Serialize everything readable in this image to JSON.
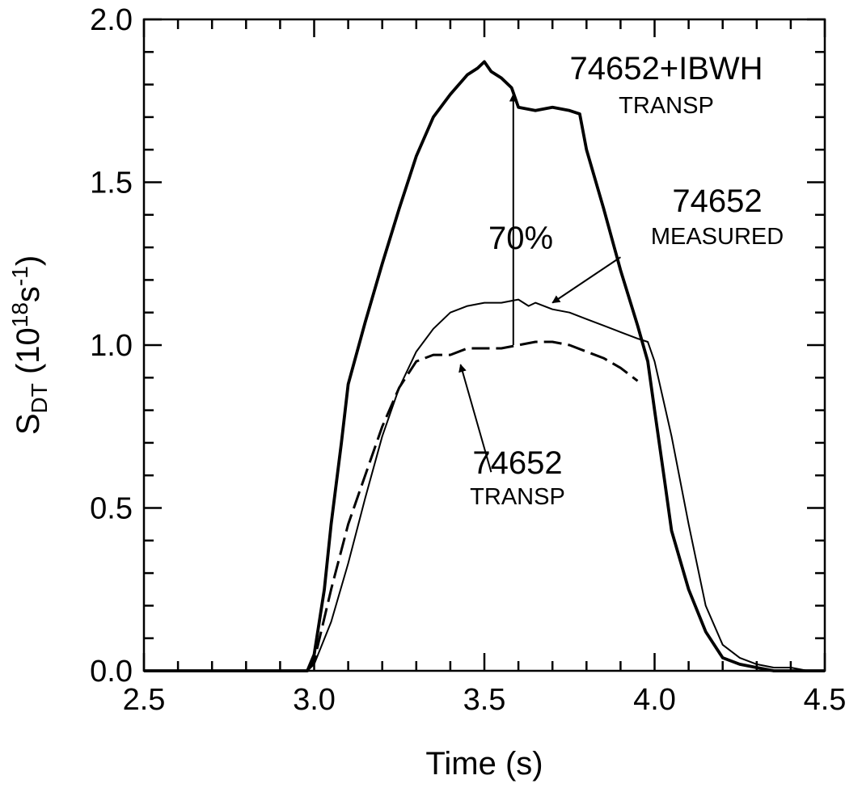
{
  "chart_data": {
    "type": "line",
    "title": "",
    "xlabel": "Time (s)",
    "ylabel": {
      "base": "S",
      "sub": "DT",
      "unit_open": " (10",
      "unit_sup1": "18",
      "unit_s": "s",
      "unit_sup2": "-1",
      "unit_close": ")"
    },
    "xlim": [
      2.5,
      4.5
    ],
    "ylim": [
      0.0,
      2.0
    ],
    "xticks": [
      {
        "value": 2.5,
        "label": "2.5"
      },
      {
        "value": 3.0,
        "label": "3.0"
      },
      {
        "value": 3.5,
        "label": "3.5"
      },
      {
        "value": 4.0,
        "label": "4.0"
      },
      {
        "value": 4.5,
        "label": "4.5"
      }
    ],
    "yticks": [
      {
        "value": 0.0,
        "label": "0.0"
      },
      {
        "value": 0.5,
        "label": "0.5"
      },
      {
        "value": 1.0,
        "label": "1.0"
      },
      {
        "value": 1.5,
        "label": "1.5"
      },
      {
        "value": 2.0,
        "label": "2.0"
      }
    ],
    "minor_tick_step_x": 0.1,
    "minor_tick_step_y": 0.1,
    "grid": false,
    "series": [
      {
        "style": "thick-solid",
        "x": [
          2.5,
          2.98,
          3.0,
          3.03,
          3.05,
          3.08,
          3.1,
          3.15,
          3.2,
          3.25,
          3.3,
          3.35,
          3.4,
          3.45,
          3.48,
          3.5,
          3.52,
          3.55,
          3.58,
          3.6,
          3.65,
          3.7,
          3.75,
          3.78,
          3.8,
          3.85,
          3.9,
          3.95,
          3.98,
          4.0,
          4.03,
          4.05,
          4.1,
          4.15,
          4.2,
          4.25,
          4.3,
          4.35,
          4.4,
          4.5
        ],
        "y": [
          0.0,
          0.0,
          0.05,
          0.25,
          0.45,
          0.7,
          0.88,
          1.07,
          1.25,
          1.42,
          1.58,
          1.7,
          1.77,
          1.83,
          1.85,
          1.87,
          1.84,
          1.82,
          1.79,
          1.73,
          1.72,
          1.73,
          1.72,
          1.71,
          1.6,
          1.42,
          1.23,
          1.06,
          0.95,
          0.8,
          0.58,
          0.43,
          0.25,
          0.12,
          0.04,
          0.02,
          0.01,
          0.0,
          0.0,
          0.0
        ]
      },
      {
        "style": "thin-solid",
        "x": [
          2.98,
          3.0,
          3.05,
          3.1,
          3.15,
          3.2,
          3.25,
          3.3,
          3.35,
          3.4,
          3.45,
          3.5,
          3.55,
          3.6,
          3.63,
          3.65,
          3.7,
          3.75,
          3.8,
          3.85,
          3.9,
          3.95,
          3.98,
          4.0,
          4.05,
          4.1,
          4.15,
          4.2,
          4.25,
          4.3,
          4.35,
          4.4,
          4.45,
          4.5
        ],
        "y": [
          0.0,
          0.02,
          0.15,
          0.33,
          0.53,
          0.72,
          0.87,
          0.98,
          1.05,
          1.1,
          1.12,
          1.13,
          1.13,
          1.14,
          1.12,
          1.13,
          1.11,
          1.1,
          1.08,
          1.06,
          1.04,
          1.02,
          1.01,
          0.95,
          0.72,
          0.45,
          0.2,
          0.08,
          0.04,
          0.02,
          0.01,
          0.01,
          0.0,
          0.0
        ]
      },
      {
        "style": "dashed",
        "x": [
          2.98,
          3.0,
          3.05,
          3.1,
          3.15,
          3.2,
          3.25,
          3.3,
          3.35,
          3.4,
          3.45,
          3.5,
          3.55,
          3.6,
          3.65,
          3.7,
          3.75,
          3.8,
          3.85,
          3.9,
          3.95
        ],
        "y": [
          0.0,
          0.03,
          0.25,
          0.45,
          0.6,
          0.75,
          0.87,
          0.95,
          0.97,
          0.97,
          0.99,
          0.99,
          0.99,
          1.0,
          1.01,
          1.01,
          1.0,
          0.98,
          0.96,
          0.93,
          0.89
        ]
      }
    ],
    "annotations": [
      {
        "id": "ibwh",
        "lines": [
          "74652+IBWH",
          "TRANSP"
        ]
      },
      {
        "id": "measured",
        "lines": [
          "74652",
          "MEASURED"
        ]
      },
      {
        "id": "transp",
        "lines": [
          "74652",
          "TRANSP"
        ]
      },
      {
        "id": "pct",
        "lines": [
          "70%"
        ]
      }
    ],
    "arrows": [
      {
        "id": "enhancement",
        "from": [
          3.585,
          1.0
        ],
        "to": [
          3.585,
          1.77
        ]
      },
      {
        "id": "measured-pointer",
        "from": [
          3.9,
          1.27
        ],
        "to": [
          3.7,
          1.13
        ]
      },
      {
        "id": "transp-pointer",
        "from": [
          3.52,
          0.61
        ],
        "to": [
          3.43,
          0.94
        ]
      }
    ]
  }
}
